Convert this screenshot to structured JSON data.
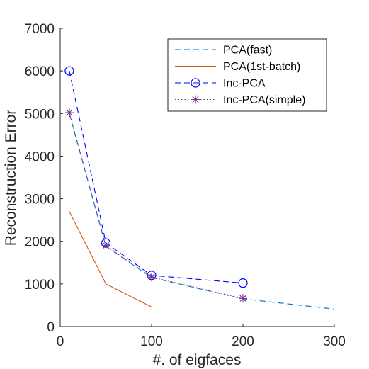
{
  "chart_data": {
    "type": "line",
    "title": "",
    "xlabel": "#. of eigfaces",
    "ylabel": "Reconstruction Error",
    "xlim": [
      0,
      300
    ],
    "ylim": [
      0,
      7000
    ],
    "xticks": [
      0,
      100,
      200,
      300
    ],
    "yticks": [
      0,
      1000,
      2000,
      3000,
      4000,
      5000,
      6000,
      7000
    ],
    "grid": false,
    "legend_position": "top-right",
    "series": [
      {
        "name": "PCA(fast)",
        "color": "#0072BD",
        "line_style": "dashed",
        "marker": "none",
        "x": [
          10,
          50,
          100,
          200,
          300
        ],
        "y": [
          5000,
          1880,
          1150,
          650,
          410
        ]
      },
      {
        "name": "PCA(1st-batch)",
        "color": "#D95319",
        "line_style": "solid",
        "marker": "none",
        "x": [
          10,
          50,
          100
        ],
        "y": [
          2700,
          1000,
          460
        ]
      },
      {
        "name": "Inc-PCA",
        "color": "#0000FF",
        "line_style": "dashed",
        "marker": "circle",
        "x": [
          10,
          50,
          100,
          200
        ],
        "y": [
          6000,
          1960,
          1200,
          1020
        ]
      },
      {
        "name": "Inc-PCA(simple)",
        "color": "#7E2F8E",
        "line_style": "dotted",
        "marker": "asterisk",
        "x": [
          10,
          50,
          100,
          200
        ],
        "y": [
          5020,
          1900,
          1160,
          660
        ]
      }
    ]
  }
}
